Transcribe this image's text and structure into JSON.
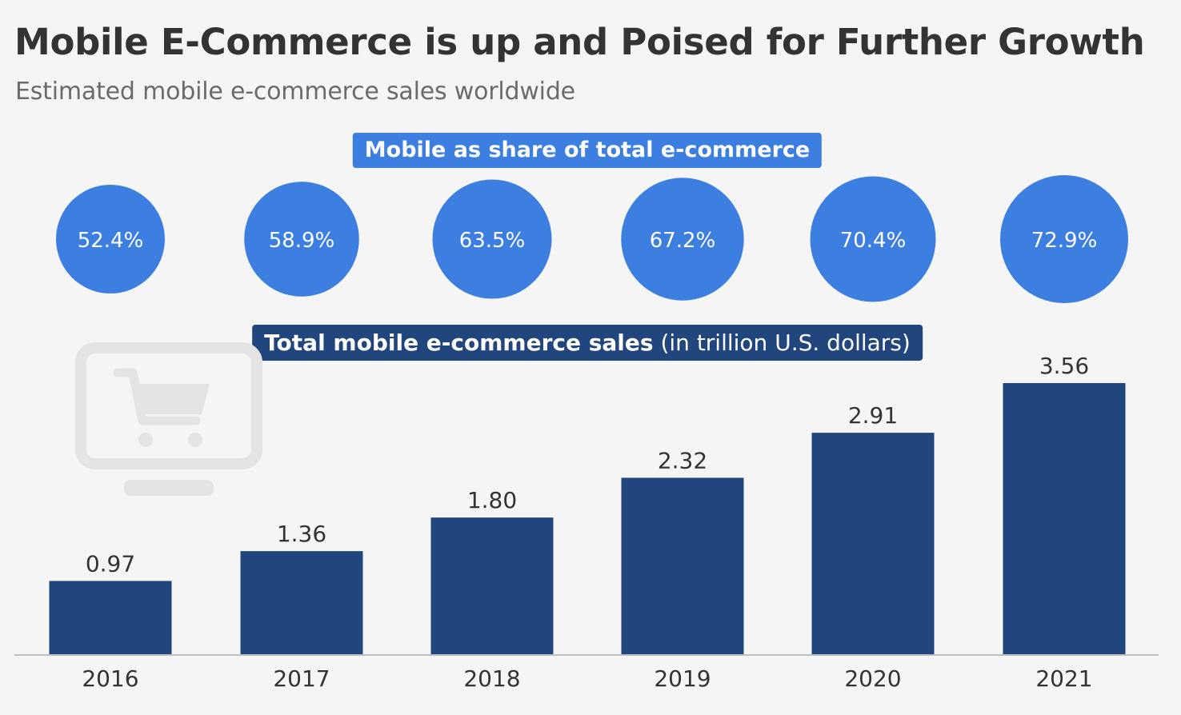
{
  "title": "Mobile E-Commerce is up and Poised for Further Growth",
  "subtitle": "Estimated mobile e-commerce sales worldwide",
  "share_label": "Mobile as share of total e-commerce",
  "sales_label_bold": "Total mobile e-commerce sales",
  "sales_label_unit": "(in trillion U.S. dollars)",
  "colors": {
    "background": "#f5f5f5",
    "bar": "#21467e",
    "circle": "#3d7fe0",
    "title": "#333333",
    "subtitle": "#6b6b6b",
    "axis": "#bfbfbf",
    "decor_icon": "#e4e4e4"
  },
  "decor_icon": "shopping-cart-monitor-icon",
  "chart_data": {
    "type": "bar",
    "title": "Mobile E-Commerce is up and Poised for Further Growth",
    "subtitle": "Estimated mobile e-commerce sales worldwide",
    "categories": [
      "2016",
      "2017",
      "2018",
      "2019",
      "2020",
      "2021"
    ],
    "series": [
      {
        "name": "Total mobile e-commerce sales (in trillion U.S. dollars)",
        "values": [
          0.97,
          1.36,
          1.8,
          2.32,
          2.91,
          3.56
        ],
        "labels": [
          "0.97",
          "1.36",
          "1.80",
          "2.32",
          "2.91",
          "3.56"
        ]
      },
      {
        "name": "Mobile as share of total e-commerce",
        "values": [
          52.4,
          58.9,
          63.5,
          67.2,
          70.4,
          72.9
        ],
        "labels": [
          "52.4%",
          "58.9%",
          "63.5%",
          "67.2%",
          "70.4%",
          "72.9%"
        ]
      }
    ],
    "xlabel": "",
    "ylabel": "",
    "ylim": [
      0,
      3.56
    ],
    "grid": false,
    "legend": "none"
  }
}
